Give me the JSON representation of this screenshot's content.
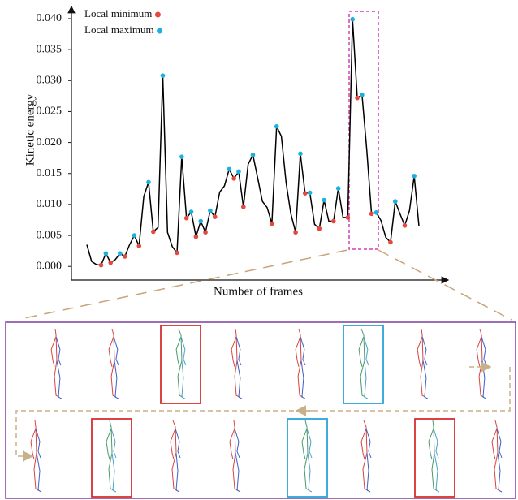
{
  "chart_data": {
    "type": "line",
    "x_label": "Number of frames",
    "y_label": "Kinetic energy",
    "color": "#000000",
    "values": [
      0.0035,
      0.0008,
      0.0003,
      0.0002,
      0.0021,
      0.0006,
      0.0011,
      0.0021,
      0.0016,
      0.0035,
      0.005,
      0.0033,
      0.0113,
      0.0136,
      0.0056,
      0.0063,
      0.0308,
      0.0055,
      0.0032,
      0.0022,
      0.0177,
      0.0078,
      0.0088,
      0.0048,
      0.0073,
      0.0055,
      0.009,
      0.008,
      0.012,
      0.013,
      0.0157,
      0.0142,
      0.0153,
      0.0096,
      0.0165,
      0.018,
      0.0143,
      0.0105,
      0.0095,
      0.0069,
      0.0226,
      0.021,
      0.0135,
      0.0085,
      0.0055,
      0.0182,
      0.0118,
      0.0119,
      0.0068,
      0.0061,
      0.0107,
      0.0073,
      0.0073,
      0.0126,
      0.0079,
      0.0079,
      0.0399,
      0.0272,
      0.0277,
      0.0188,
      0.0085,
      0.0087,
      0.0074,
      0.0047,
      0.0039,
      0.0105,
      0.0085,
      0.0066,
      0.009,
      0.0146,
      0.0065
    ],
    "series": [
      {
        "name": "Local minimum",
        "color": "#e8473f",
        "values": [
          null,
          null,
          null,
          0.0002,
          null,
          0.0006,
          null,
          null,
          0.0016,
          null,
          null,
          0.0033,
          null,
          null,
          0.0056,
          null,
          null,
          null,
          null,
          0.0022,
          null,
          0.0078,
          null,
          0.0048,
          null,
          0.0055,
          null,
          0.008,
          null,
          null,
          null,
          0.0142,
          null,
          0.0096,
          null,
          null,
          null,
          null,
          null,
          0.0069,
          null,
          null,
          null,
          null,
          0.0055,
          null,
          0.0118,
          null,
          null,
          0.0061,
          null,
          null,
          0.0073,
          null,
          null,
          0.0079,
          null,
          0.0272,
          null,
          null,
          0.0085,
          null,
          null,
          null,
          0.0039,
          null,
          null,
          0.0066,
          null,
          null,
          null
        ]
      },
      {
        "name": "Local maximum",
        "color": "#1ab0e0",
        "values": [
          null,
          null,
          null,
          null,
          0.0021,
          null,
          null,
          0.0021,
          null,
          null,
          0.005,
          null,
          null,
          0.0136,
          null,
          null,
          0.0308,
          null,
          null,
          null,
          0.0177,
          null,
          0.0088,
          null,
          0.0073,
          null,
          0.009,
          null,
          null,
          null,
          0.0157,
          null,
          0.0153,
          null,
          null,
          0.018,
          null,
          null,
          null,
          null,
          0.0226,
          null,
          null,
          null,
          null,
          0.0182,
          null,
          0.0119,
          null,
          null,
          0.0107,
          null,
          null,
          0.0126,
          null,
          null,
          0.0399,
          null,
          0.0277,
          null,
          null,
          0.0087,
          null,
          null,
          null,
          0.0105,
          null,
          null,
          null,
          0.0146,
          null
        ]
      }
    ],
    "ylim": [
      -0.0022,
      0.0417
    ],
    "yticks": [
      {
        "value": 0,
        "label": "0.000"
      },
      {
        "value": 0.005,
        "label": "0.005"
      },
      {
        "value": 0.01,
        "label": "0.010"
      },
      {
        "value": 0.015,
        "label": "0.015"
      },
      {
        "value": 0.02,
        "label": "0.020"
      },
      {
        "value": 0.025,
        "label": "0.025"
      },
      {
        "value": 0.03,
        "label": "0.030"
      },
      {
        "value": 0.035,
        "label": "0.035"
      },
      {
        "value": 0.04,
        "label": "0.040"
      }
    ],
    "legend": "top-left"
  }
}
